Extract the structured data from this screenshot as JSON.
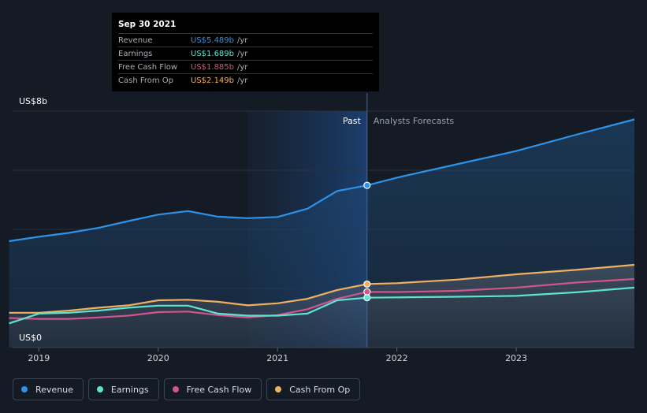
{
  "tooltip": {
    "date": "Sep 30 2021",
    "rows": [
      {
        "label": "Revenue",
        "value": "US$5.489b",
        "unit": "/yr",
        "color": "#2e93e8"
      },
      {
        "label": "Earnings",
        "value": "US$1.689b",
        "unit": "/yr",
        "color": "#5ee3d0"
      },
      {
        "label": "Free Cash Flow",
        "value": "US$1.885b",
        "unit": "/yr",
        "color": "#d1558a"
      },
      {
        "label": "Cash From Op",
        "value": "US$2.149b",
        "unit": "/yr",
        "color": "#f0b060"
      }
    ]
  },
  "divider": {
    "past_label": "Past",
    "forecast_label": "Analysts Forecasts"
  },
  "legend": [
    {
      "label": "Revenue",
      "color": "#2e93e8"
    },
    {
      "label": "Earnings",
      "color": "#5ee3d0"
    },
    {
      "label": "Free Cash Flow",
      "color": "#d1558a"
    },
    {
      "label": "Cash From Op",
      "color": "#f0b060"
    }
  ],
  "chart_data": {
    "type": "line",
    "y_top_label": "US$8b",
    "y_bottom_label": "US$0",
    "ylim": [
      0,
      8
    ],
    "xlim": [
      2018.78,
      2023.99
    ],
    "x_ticks": [
      2019,
      2020,
      2021,
      2022,
      2023
    ],
    "x_tick_labels": [
      "2019",
      "2020",
      "2021",
      "2022",
      "2023"
    ],
    "past_end": 2021.75,
    "past_shade_start": 2020.75,
    "grid": true,
    "series": [
      {
        "name": "Revenue",
        "color": "#2e93e8",
        "fill": true,
        "points": [
          [
            2018.75,
            3.6
          ],
          [
            2019.0,
            3.75
          ],
          [
            2019.25,
            3.88
          ],
          [
            2019.5,
            4.05
          ],
          [
            2019.75,
            4.28
          ],
          [
            2020.0,
            4.5
          ],
          [
            2020.25,
            4.62
          ],
          [
            2020.5,
            4.43
          ],
          [
            2020.75,
            4.38
          ],
          [
            2021.0,
            4.42
          ],
          [
            2021.25,
            4.7
          ],
          [
            2021.5,
            5.3
          ],
          [
            2021.75,
            5.489
          ],
          [
            2022.0,
            5.75
          ],
          [
            2022.5,
            6.2
          ],
          [
            2023.0,
            6.65
          ],
          [
            2023.5,
            7.2
          ],
          [
            2023.99,
            7.72
          ]
        ]
      },
      {
        "name": "Cash From Op",
        "color": "#f0b060",
        "fill": false,
        "points": [
          [
            2018.75,
            1.18
          ],
          [
            2019.0,
            1.18
          ],
          [
            2019.25,
            1.25
          ],
          [
            2019.5,
            1.35
          ],
          [
            2019.75,
            1.43
          ],
          [
            2020.0,
            1.6
          ],
          [
            2020.25,
            1.62
          ],
          [
            2020.5,
            1.55
          ],
          [
            2020.75,
            1.43
          ],
          [
            2021.0,
            1.5
          ],
          [
            2021.25,
            1.65
          ],
          [
            2021.5,
            1.95
          ],
          [
            2021.75,
            2.149
          ],
          [
            2022.0,
            2.18
          ],
          [
            2022.5,
            2.3
          ],
          [
            2023.0,
            2.48
          ],
          [
            2023.5,
            2.63
          ],
          [
            2023.99,
            2.8
          ]
        ]
      },
      {
        "name": "Free Cash Flow",
        "color": "#d1558a",
        "fill": false,
        "points": [
          [
            2018.75,
            1.0
          ],
          [
            2019.0,
            0.97
          ],
          [
            2019.25,
            0.97
          ],
          [
            2019.5,
            1.02
          ],
          [
            2019.75,
            1.08
          ],
          [
            2020.0,
            1.2
          ],
          [
            2020.25,
            1.22
          ],
          [
            2020.5,
            1.1
          ],
          [
            2020.75,
            1.02
          ],
          [
            2021.0,
            1.1
          ],
          [
            2021.25,
            1.3
          ],
          [
            2021.5,
            1.65
          ],
          [
            2021.75,
            1.885
          ],
          [
            2022.0,
            1.88
          ],
          [
            2022.5,
            1.92
          ],
          [
            2023.0,
            2.03
          ],
          [
            2023.5,
            2.2
          ],
          [
            2023.99,
            2.32
          ]
        ]
      },
      {
        "name": "Earnings",
        "color": "#5ee3d0",
        "fill": false,
        "points": [
          [
            2018.75,
            0.82
          ],
          [
            2019.0,
            1.15
          ],
          [
            2019.25,
            1.18
          ],
          [
            2019.5,
            1.25
          ],
          [
            2019.75,
            1.35
          ],
          [
            2020.0,
            1.42
          ],
          [
            2020.25,
            1.42
          ],
          [
            2020.5,
            1.15
          ],
          [
            2020.75,
            1.08
          ],
          [
            2021.0,
            1.08
          ],
          [
            2021.25,
            1.15
          ],
          [
            2021.5,
            1.6
          ],
          [
            2021.75,
            1.689
          ],
          [
            2022.0,
            1.7
          ],
          [
            2022.5,
            1.72
          ],
          [
            2023.0,
            1.75
          ],
          [
            2023.5,
            1.87
          ],
          [
            2023.99,
            2.03
          ]
        ]
      }
    ]
  }
}
